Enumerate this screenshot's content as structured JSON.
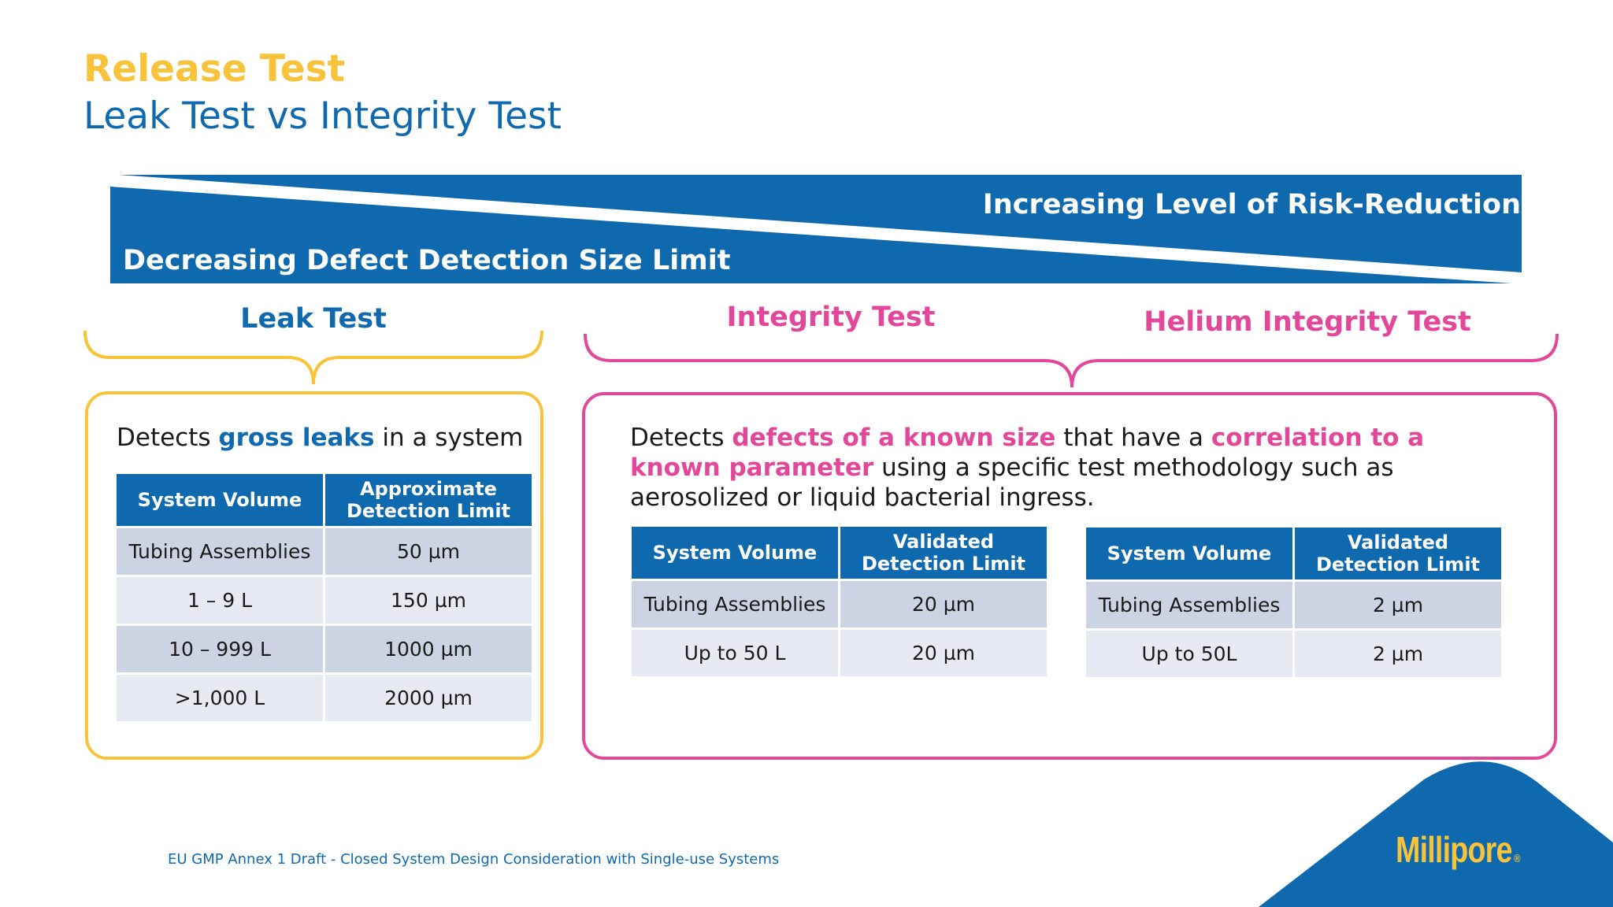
{
  "heading": {
    "category": "Release Test",
    "title": "Leak Test vs Integrity Test"
  },
  "banner": {
    "top_text": "Increasing Level of Risk-Reduction",
    "bottom_text": "Decreasing Defect Detection Size Limit"
  },
  "labels": {
    "leak": "Leak Test",
    "integrity": "Integrity Test",
    "helium": "Helium Integrity Test"
  },
  "leak_panel": {
    "desc_pre": "Detects ",
    "desc_hl": "gross leaks",
    "desc_post": " in a system",
    "table": {
      "headers": [
        "System Volume",
        "Approximate Detection Limit"
      ],
      "rows": [
        [
          "Tubing Assemblies",
          "50 µm"
        ],
        [
          "1 – 9 L",
          "150 µm"
        ],
        [
          "10 – 999 L",
          "1000 µm"
        ],
        [
          ">1,000 L",
          "2000 µm"
        ]
      ]
    }
  },
  "integrity_panel": {
    "desc_1": "Detects ",
    "desc_hl1": "defects of a known size",
    "desc_2": " that have a ",
    "desc_hl2": "correlation to a known parameter",
    "desc_3": " using a specific test methodology such as aerosolized or liquid bacterial ingress.",
    "table_integrity": {
      "headers": [
        "System Volume",
        "Validated Detection Limit"
      ],
      "rows": [
        [
          "Tubing Assemblies",
          "20 µm"
        ],
        [
          "Up to 50 L",
          "20 µm"
        ]
      ]
    },
    "table_helium": {
      "headers": [
        "System Volume",
        "Validated Detection Limit"
      ],
      "rows": [
        [
          "Tubing Assemblies",
          "2 µm"
        ],
        [
          "Up to 50L",
          "2 µm"
        ]
      ]
    }
  },
  "footer": {
    "note": "EU GMP Annex 1 Draft - Closed System Design Consideration with Single-use Systems"
  },
  "logo": {
    "text": "Millipore",
    "reg": "®"
  },
  "colors": {
    "blue": "#0f69af",
    "yellow": "#f6c33b",
    "pink": "#e2479a"
  }
}
